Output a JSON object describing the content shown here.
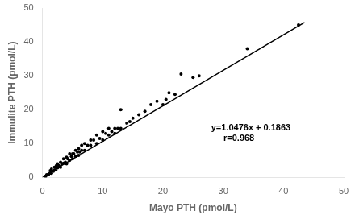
{
  "chart_data": {
    "type": "scatter",
    "xlabel": "Mayo PTH (pmol/L)",
    "ylabel": "Immulite PTH (pmol/L)",
    "xlim": [
      0,
      50
    ],
    "ylim": [
      0,
      50
    ],
    "xticks": [
      0,
      10,
      20,
      30,
      40,
      50
    ],
    "yticks": [
      0,
      10,
      20,
      30,
      40,
      50
    ],
    "grid": false,
    "series": [
      {
        "type": "scatter",
        "marker": "circle",
        "color": "#000000",
        "x": [
          0.5,
          0.7,
          1.0,
          1.2,
          1.3,
          1.5,
          1.5,
          1.8,
          2.0,
          2.0,
          2.2,
          2.3,
          2.5,
          2.5,
          2.7,
          2.8,
          3.0,
          3.0,
          3.2,
          3.5,
          3.5,
          3.8,
          4.0,
          4.0,
          4.2,
          4.5,
          4.5,
          4.8,
          5.0,
          5.0,
          5.2,
          5.5,
          5.5,
          5.8,
          6.0,
          6.0,
          6.2,
          6.5,
          6.5,
          7.0,
          7.0,
          7.5,
          8.0,
          8.0,
          8.5,
          9.0,
          9.0,
          9.5,
          10.0,
          10.0,
          10.5,
          11.0,
          11.0,
          11.5,
          12.0,
          12.0,
          12.5,
          13.0,
          13.0,
          14.0,
          14.5,
          15.0,
          16.0,
          17.0,
          18.0,
          19.0,
          20.0,
          20.5,
          21.0,
          22.0,
          23.0,
          25.0,
          26.0,
          34.0,
          42.5
        ],
        "values": [
          0.3,
          0.8,
          0.8,
          1.2,
          2.0,
          1.2,
          2.5,
          1.8,
          2.2,
          3.0,
          2.2,
          3.5,
          2.8,
          4.0,
          3.5,
          3.2,
          3.0,
          4.5,
          4.0,
          4.2,
          5.5,
          4.5,
          4.0,
          6.0,
          5.5,
          5.0,
          7.0,
          6.2,
          5.5,
          7.0,
          7.0,
          6.2,
          8.0,
          7.5,
          6.5,
          8.5,
          7.5,
          8.0,
          9.5,
          8.0,
          10.0,
          9.5,
          9.5,
          11.0,
          11.0,
          10.0,
          12.5,
          11.5,
          11.0,
          13.5,
          13.0,
          12.5,
          14.5,
          13.5,
          13.0,
          14.5,
          14.5,
          14.5,
          20.0,
          16.0,
          16.5,
          17.5,
          18.5,
          19.5,
          21.5,
          22.5,
          21.5,
          23.0,
          25.0,
          24.5,
          30.5,
          29.5,
          30.0,
          38.0,
          45.0
        ]
      },
      {
        "type": "line",
        "line_style": "solid",
        "color": "#000000",
        "x": [
          0,
          43.5
        ],
        "values": [
          0.1863,
          45.7569
        ]
      }
    ],
    "annotations": [
      {
        "text": "y=1.0476x + 0.1863\n     r=0.968",
        "x": 28,
        "y": 13,
        "color": "#000000"
      }
    ]
  }
}
